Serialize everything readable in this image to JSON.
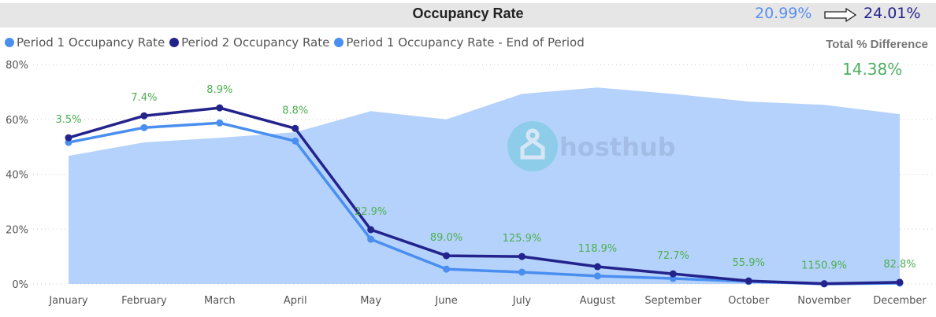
{
  "header": {
    "title": "Occupancy Rate",
    "period1_total": "20.99%",
    "period2_total": "24.01%",
    "arrow_icon": "right-arrow-icon"
  },
  "summary": {
    "total_diff_label": "Total % Difference",
    "total_diff_value": "14.38%"
  },
  "colors": {
    "period1": "#4a8ff0",
    "period2": "#23238c",
    "end_of_period_area": "#b5d2fc",
    "data_label": "#4caf50",
    "title_bar": "#e6e6e6"
  },
  "watermark": {
    "text": "hosthub",
    "icon": "house-pin-icon"
  },
  "chart_data": {
    "type": "line",
    "title": "Occupancy Rate",
    "xlabel": "",
    "ylabel": "",
    "ylim": [
      0,
      80
    ],
    "yticks": [
      0,
      20,
      40,
      60,
      80
    ],
    "ytick_labels": [
      "0%",
      "20%",
      "40%",
      "60%",
      "80%"
    ],
    "grid": true,
    "legend_position": "top-left",
    "categories": [
      "January",
      "February",
      "March",
      "April",
      "May",
      "June",
      "July",
      "August",
      "September",
      "October",
      "November",
      "December"
    ],
    "series": [
      {
        "name": "Period 1 Occupancy Rate",
        "type": "line",
        "color": "#4a8ff0",
        "values": [
          51.6,
          57.0,
          58.7,
          52.1,
          16.3,
          5.4,
          4.3,
          2.9,
          2.0,
          0.9,
          0.0,
          0.3
        ]
      },
      {
        "name": "Period 2 Occupancy Rate",
        "type": "line",
        "color": "#23238c",
        "values": [
          53.3,
          61.3,
          64.2,
          56.7,
          19.8,
          10.3,
          10.0,
          6.3,
          3.7,
          1.1,
          0.1,
          0.6
        ]
      },
      {
        "name": "Period 1 Occupancy Rate - End of Period",
        "type": "area",
        "color": "#b5d2fc",
        "values": [
          46.7,
          51.6,
          53.3,
          55.3,
          63.0,
          60.0,
          69.3,
          71.6,
          69.3,
          66.5,
          65.3,
          61.9
        ]
      }
    ],
    "data_labels": [
      "3.5%",
      "7.4%",
      "8.9%",
      "8.8%",
      "22.9%",
      "89.0%",
      "125.9%",
      "118.9%",
      "72.7%",
      "55.9%",
      "1150.9%",
      "82.8%"
    ]
  }
}
